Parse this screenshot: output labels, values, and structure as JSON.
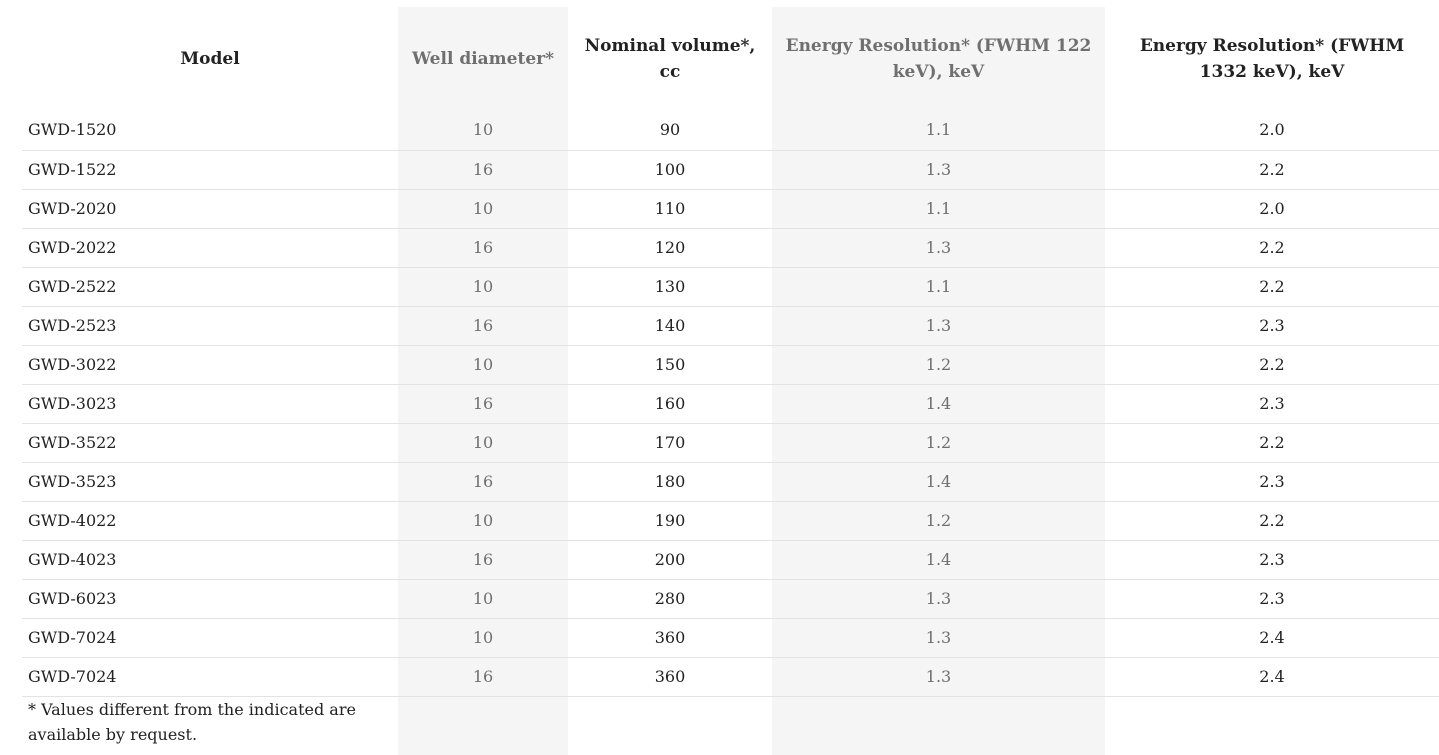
{
  "table": {
    "headers": {
      "model": "Model",
      "well_diameter": "Well diameter*",
      "nominal_volume": "Nominal volume*, cc",
      "energy_res_122": "Energy Resolution* (FWHM 122 keV), keV",
      "energy_res_1332": "Energy Resolution* (FWHM 1332 keV), keV"
    },
    "rows": [
      {
        "model": "GWD-1520",
        "well": "10",
        "volume": "90",
        "er122": "1.1",
        "er1332": "2.0"
      },
      {
        "model": "GWD-1522",
        "well": "16",
        "volume": "100",
        "er122": "1.3",
        "er1332": "2.2"
      },
      {
        "model": "GWD-2020",
        "well": "10",
        "volume": "110",
        "er122": "1.1",
        "er1332": "2.0"
      },
      {
        "model": "GWD-2022",
        "well": "16",
        "volume": "120",
        "er122": "1.3",
        "er1332": "2.2"
      },
      {
        "model": "GWD-2522",
        "well": "10",
        "volume": "130",
        "er122": "1.1",
        "er1332": "2.2"
      },
      {
        "model": "GWD-2523",
        "well": "16",
        "volume": "140",
        "er122": "1.3",
        "er1332": "2.3"
      },
      {
        "model": "GWD-3022",
        "well": "10",
        "volume": "150",
        "er122": "1.2",
        "er1332": "2.2"
      },
      {
        "model": "GWD-3023",
        "well": "16",
        "volume": "160",
        "er122": "1.4",
        "er1332": "2.3"
      },
      {
        "model": "GWD-3522",
        "well": "10",
        "volume": "170",
        "er122": "1.2",
        "er1332": "2.2"
      },
      {
        "model": "GWD-3523",
        "well": "16",
        "volume": "180",
        "er122": "1.4",
        "er1332": "2.3"
      },
      {
        "model": "GWD-4022",
        "well": "10",
        "volume": "190",
        "er122": "1.2",
        "er1332": "2.2"
      },
      {
        "model": "GWD-4023",
        "well": "16",
        "volume": "200",
        "er122": "1.4",
        "er1332": "2.3"
      },
      {
        "model": "GWD-6023",
        "well": "10",
        "volume": "280",
        "er122": "1.3",
        "er1332": "2.3"
      },
      {
        "model": "GWD-7024",
        "well": "10",
        "volume": "360",
        "er122": "1.3",
        "er1332": "2.4"
      },
      {
        "model": "GWD-7024",
        "well": "16",
        "volume": "360",
        "er122": "1.3",
        "er1332": "2.4"
      }
    ]
  },
  "footnote": "* Values different from the indicated are available by request.",
  "colors": {
    "shaded_column_bg": "#f5f5f5",
    "muted_text": "#6f6f6f",
    "dark_text": "#222222",
    "row_divider": "#e3e3e3"
  }
}
